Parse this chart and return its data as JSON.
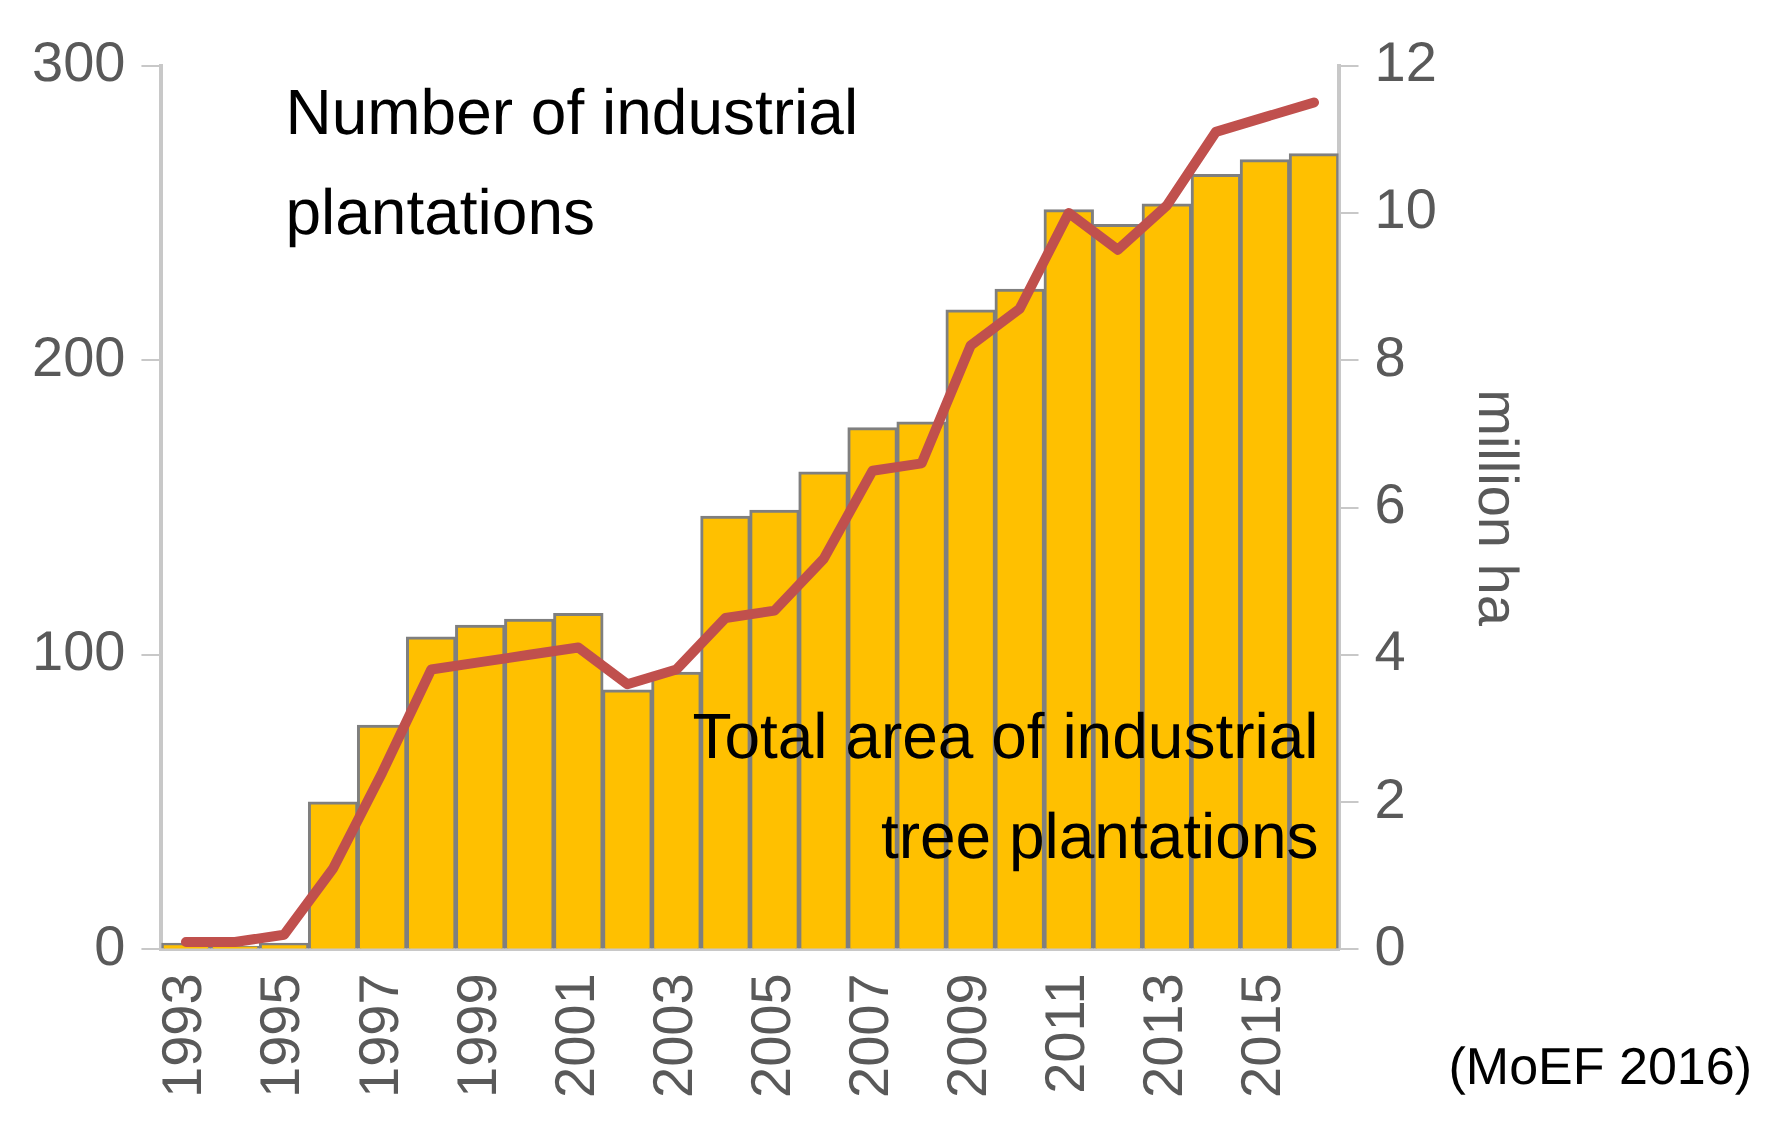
{
  "chart_data": {
    "type": "bar",
    "y2label": "million ha",
    "categories": [
      "1993",
      null,
      "1995",
      null,
      "1997",
      null,
      "1999",
      null,
      "2001",
      null,
      "2003",
      null,
      "2005",
      null,
      "2007",
      null,
      "2009",
      null,
      "2011",
      null,
      "2013",
      null,
      "2015",
      null
    ],
    "series": [
      {
        "color": "#ffc000",
        "values": [
          2,
          1,
          2,
          50,
          76,
          106,
          110,
          112,
          114,
          88,
          94,
          147,
          149,
          162,
          177,
          179,
          217,
          224,
          251,
          246,
          253,
          263,
          268,
          270
        ]
      },
      {
        "type": "line",
        "axis": "y2",
        "color": "#c0504d",
        "values": [
          0.1,
          0.1,
          0.2,
          1.1,
          2.4,
          3.8,
          3.9,
          4.0,
          4.1,
          3.6,
          3.8,
          4.5,
          4.6,
          5.3,
          6.5,
          6.6,
          8.2,
          8.7,
          10.0,
          9.5,
          10.1,
          11.1,
          11.3,
          11.5
        ]
      }
    ],
    "ylim": [
      0,
      300
    ],
    "yticks": [
      0,
      100,
      200,
      300
    ],
    "y2lim": [
      0,
      12
    ],
    "y2ticks": [
      0,
      2,
      4,
      6,
      8,
      10,
      12
    ],
    "marker": "none",
    "line_style": "solid",
    "legend": false,
    "grid": false,
    "annotations": [
      "Number of industrial plantations",
      "Total area of industrial tree plantations",
      "(MoEF 2016)"
    ]
  }
}
